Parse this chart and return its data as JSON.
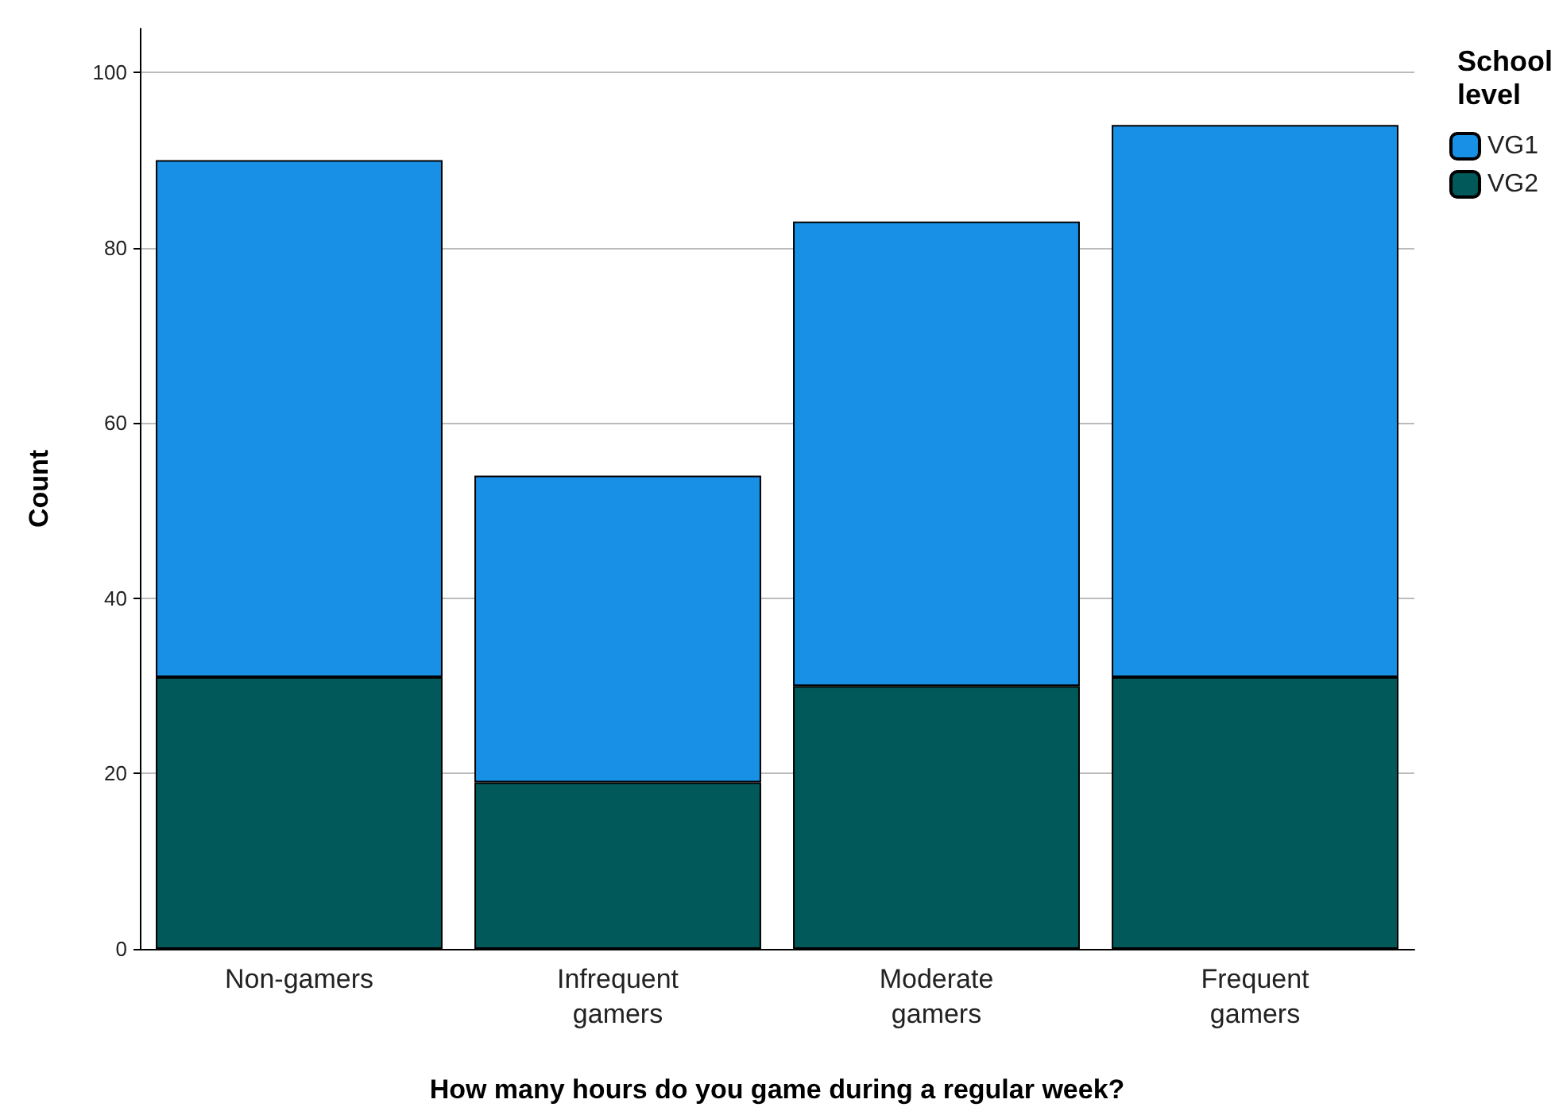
{
  "chart_data": {
    "type": "bar",
    "stacked": true,
    "xlabel": "How many hours do you game during a regular week?",
    "ylabel": "Count",
    "legend_title": "School\nlevel",
    "categories": [
      "Non-gamers",
      "Infrequent\ngamers",
      "Moderate\ngamers",
      "Frequent\ngamers"
    ],
    "series": [
      {
        "name": "VG2",
        "color": "#01595a",
        "values": [
          31,
          19,
          30,
          31
        ]
      },
      {
        "name": "VG1",
        "color": "#1790e6",
        "values": [
          59,
          35,
          53,
          63
        ]
      }
    ],
    "ylim": [
      0,
      105
    ],
    "yticks": [
      0,
      20,
      40,
      60,
      80,
      100
    ],
    "grid": "y",
    "legend": "top right"
  }
}
